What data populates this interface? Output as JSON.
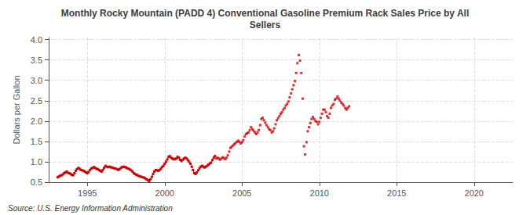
{
  "chart_data": {
    "type": "line",
    "title": "Monthly Rocky Mountain (PADD 4) Conventional Gasoline Premium Rack Sales Price by All\nSellers",
    "ylabel": "Dollars per Gallon",
    "annotations": [
      "Source: U.S. Energy Information Administration"
    ],
    "xlim": [
      1992.5,
      2022.5
    ],
    "ylim": [
      0.5,
      4.05
    ],
    "xticks": [
      1995,
      2000,
      2005,
      2010,
      2015,
      2020
    ],
    "yticks": [
      0.5,
      {
        "value": 1.0,
        "label": "1.0"
      },
      1.5,
      {
        "value": 2.0,
        "label": "2.0"
      },
      2.5,
      {
        "value": 3.0,
        "label": "3.0"
      },
      3.5,
      {
        "value": 4.0,
        "label": "4.0"
      }
    ],
    "grid": true,
    "series": [
      {
        "type": "line",
        "color": "#cc0000",
        "marker": "square",
        "line_style": "dashed",
        "x": [
          1993.08,
          1993.17,
          1993.25,
          1993.33,
          1993.42,
          1993.5,
          1993.58,
          1993.67,
          1993.75,
          1993.83,
          1993.92,
          1994.0,
          1994.08,
          1994.17,
          1994.25,
          1994.33,
          1994.42,
          1994.5,
          1994.58,
          1994.67,
          1994.75,
          1994.83,
          1994.92,
          1995.0,
          1995.08,
          1995.17,
          1995.25,
          1995.33,
          1995.42,
          1995.5,
          1995.58,
          1995.67,
          1995.75,
          1995.83,
          1995.92,
          1996.0,
          1996.08,
          1996.17,
          1996.25,
          1996.33,
          1996.42,
          1996.5,
          1996.58,
          1996.67,
          1996.75,
          1996.83,
          1996.92,
          1997.0,
          1997.08,
          1997.17,
          1997.25,
          1997.33,
          1997.42,
          1997.5,
          1997.58,
          1997.67,
          1997.75,
          1997.83,
          1997.92,
          1998.0,
          1998.08,
          1998.17,
          1998.25,
          1998.33,
          1998.42,
          1998.5,
          1998.58,
          1998.67,
          1998.75,
          1998.83,
          1998.92,
          1999.0,
          1999.08,
          1999.17,
          1999.25,
          1999.33,
          1999.42,
          1999.5,
          1999.58,
          1999.67,
          1999.75,
          1999.83,
          1999.92,
          2000.0,
          2000.08,
          2000.17,
          2000.25,
          2000.33,
          2000.42,
          2000.5,
          2000.58,
          2000.67,
          2000.75,
          2000.83,
          2000.92,
          2001.0,
          2001.08,
          2001.17,
          2001.25,
          2001.33,
          2001.42,
          2001.5,
          2001.58,
          2001.67,
          2001.75,
          2001.83,
          2001.92,
          2002.0,
          2002.08,
          2002.17,
          2002.25,
          2002.33,
          2002.42,
          2002.5,
          2002.58,
          2002.67,
          2002.75,
          2002.83,
          2002.92,
          2003.0,
          2003.08,
          2003.17,
          2003.25
        ],
        "values": [
          0.62,
          0.64,
          0.66,
          0.67,
          0.69,
          0.72,
          0.74,
          0.76,
          0.73,
          0.72,
          0.7,
          0.68,
          0.67,
          0.72,
          0.78,
          0.82,
          0.85,
          0.83,
          0.8,
          0.79,
          0.78,
          0.76,
          0.74,
          0.72,
          0.75,
          0.8,
          0.83,
          0.85,
          0.87,
          0.85,
          0.83,
          0.82,
          0.8,
          0.78,
          0.76,
          0.8,
          0.85,
          0.9,
          0.88,
          0.87,
          0.88,
          0.87,
          0.86,
          0.85,
          0.84,
          0.83,
          0.82,
          0.8,
          0.82,
          0.85,
          0.87,
          0.88,
          0.87,
          0.86,
          0.84,
          0.83,
          0.81,
          0.79,
          0.76,
          0.72,
          0.7,
          0.68,
          0.67,
          0.65,
          0.64,
          0.63,
          0.62,
          0.61,
          0.59,
          0.57,
          0.55,
          0.52,
          0.57,
          0.63,
          0.7,
          0.76,
          0.8,
          0.79,
          0.78,
          0.8,
          0.83,
          0.87,
          0.9,
          0.95,
          1.0,
          1.06,
          1.12,
          1.14,
          1.1,
          1.08,
          1.06,
          1.07,
          1.08,
          1.12,
          1.1,
          1.05,
          1.02,
          1.05,
          1.08,
          1.1,
          1.08,
          1.04,
          1.0,
          0.95,
          0.88,
          0.8,
          0.72,
          0.7,
          0.74,
          0.79,
          0.84,
          0.88,
          0.9,
          0.88,
          0.86,
          0.88,
          0.9,
          0.93,
          0.96,
          0.98,
          1.04,
          1.1,
          1.14
        ]
      },
      {
        "type": "scatter",
        "color": "#cc0000",
        "marker": "square",
        "x": [
          2003.33,
          2003.42,
          2003.5,
          2003.58,
          2003.67,
          2003.75,
          2003.83,
          2003.92,
          2004.0,
          2004.08,
          2004.17,
          2004.25,
          2004.33,
          2004.42,
          2004.5,
          2004.58,
          2004.67,
          2004.75,
          2004.83,
          2004.92,
          2005.0,
          2005.08,
          2005.17,
          2005.25,
          2005.33,
          2005.42,
          2005.5,
          2005.58,
          2005.67,
          2005.75,
          2005.83,
          2005.92,
          2006.0,
          2006.08,
          2006.17,
          2006.25,
          2006.33,
          2006.42,
          2006.5,
          2006.58,
          2006.67,
          2006.75,
          2006.83,
          2006.92,
          2007.0,
          2007.08,
          2007.17,
          2007.25,
          2007.33,
          2007.42,
          2007.5,
          2007.58,
          2007.67,
          2007.75,
          2007.83,
          2007.92,
          2008.0,
          2008.08,
          2008.17,
          2008.25,
          2008.33,
          2008.42,
          2008.5,
          2008.58,
          2008.67,
          2008.75,
          2008.83,
          2008.92,
          2009.0,
          2009.08,
          2009.17,
          2009.25,
          2009.33,
          2009.42,
          2009.5,
          2009.58,
          2009.67,
          2009.75,
          2009.83,
          2009.92,
          2010.0,
          2010.08,
          2010.17,
          2010.25,
          2010.33,
          2010.42,
          2010.5,
          2010.58,
          2010.67,
          2010.75,
          2010.83,
          2010.92,
          2011.0,
          2011.08,
          2011.17,
          2011.25,
          2011.33,
          2011.42,
          2011.5,
          2011.58,
          2011.67,
          2011.75,
          2011.83,
          2011.92
        ],
        "values": [
          1.08,
          1.1,
          1.08,
          1.05,
          1.08,
          1.11,
          1.09,
          1.06,
          1.1,
          1.16,
          1.25,
          1.34,
          1.37,
          1.4,
          1.43,
          1.46,
          1.49,
          1.52,
          1.49,
          1.45,
          1.48,
          1.53,
          1.62,
          1.68,
          1.7,
          1.72,
          1.78,
          1.85,
          1.8,
          1.76,
          1.72,
          1.68,
          1.72,
          1.78,
          1.9,
          2.05,
          2.08,
          2.02,
          1.96,
          1.9,
          1.85,
          1.8,
          1.78,
          1.72,
          1.75,
          1.82,
          1.92,
          2.02,
          2.07,
          2.12,
          2.18,
          2.22,
          2.28,
          2.32,
          2.38,
          2.42,
          2.48,
          2.58,
          2.68,
          2.78,
          2.88,
          2.98,
          3.18,
          3.42,
          3.62,
          3.48,
          3.18,
          2.55,
          1.38,
          1.18,
          1.48,
          1.75,
          1.85,
          1.95,
          2.05,
          2.1,
          2.05,
          2.0,
          1.98,
          1.92,
          1.98,
          2.08,
          2.18,
          2.28,
          2.28,
          2.22,
          2.12,
          2.08,
          2.18,
          2.32,
          2.38,
          2.42,
          2.52,
          2.55,
          2.6,
          2.55,
          2.5,
          2.45,
          2.42,
          2.38,
          2.32,
          2.28,
          2.32,
          2.36
        ]
      }
    ]
  }
}
